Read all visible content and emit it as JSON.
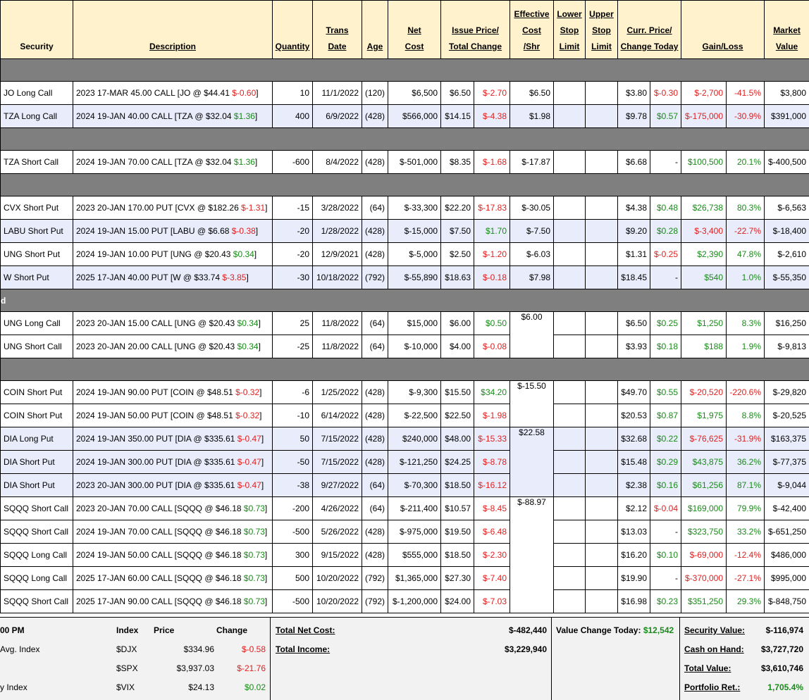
{
  "headers": {
    "security": "Security",
    "description": "Description",
    "quantity": "Quantity",
    "trans_date_1": "Trans",
    "trans_date_2": "Date",
    "age": "Age",
    "net_cost_1": "Net",
    "net_cost_2": "Cost",
    "issue_price_1": "Issue Price/",
    "issue_price_2": "Total Change",
    "eff_cost_1": "Effective",
    "eff_cost_2": "Cost",
    "eff_cost_3": "/Shr",
    "lower_1": "Lower",
    "lower_2": "Stop",
    "lower_3": "Limit",
    "upper_1": "Upper",
    "upper_2": "Stop",
    "upper_3": "Limit",
    "curr_price_1": "Curr. Price/",
    "curr_price_2": "Change Today",
    "gain_loss": "Gain/Loss",
    "market_1": "Market",
    "market_2": "Value"
  },
  "section_labels": [
    "",
    "",
    "",
    "d",
    ""
  ],
  "rows": [
    {
      "section": 0,
      "alt": false,
      "security": "JO Long Call",
      "desc": "2023 17-MAR 45.00 CALL [JO @ $44.41",
      "desc_chg": "$-0.60",
      "desc_chg_color": "red",
      "qty": "10",
      "date": "11/1/2022",
      "age": "(120)",
      "net_cost": "$6,500",
      "issue": "$6.50",
      "total_chg": "$-2.70",
      "total_chg_color": "red",
      "eff": "$6.50",
      "curr": "$3.80",
      "chg_today": "$-0.30",
      "chg_today_color": "red",
      "gain": "$-2,700",
      "gain_color": "red",
      "pct": "-41.5%",
      "pct_color": "red",
      "market": "$3,800"
    },
    {
      "section": 0,
      "alt": true,
      "security": "TZA Long Call",
      "desc": "2024 19-JAN 40.00 CALL [TZA @ $32.04",
      "desc_chg": "$1.36",
      "desc_chg_color": "grn",
      "qty": "400",
      "date": "6/9/2022",
      "age": "(428)",
      "net_cost": "$566,000",
      "issue": "$14.15",
      "total_chg": "$-4.38",
      "total_chg_color": "red",
      "eff": "$1.98",
      "curr": "$9.78",
      "chg_today": "$0.57",
      "chg_today_color": "grn",
      "gain": "$-175,000",
      "gain_color": "red",
      "pct": "-30.9%",
      "pct_color": "red",
      "market": "$391,000"
    },
    {
      "section": 1,
      "alt": false,
      "security": "TZA Short Call",
      "desc": "2024 19-JAN 70.00 CALL [TZA @ $32.04",
      "desc_chg": "$1.36",
      "desc_chg_color": "grn",
      "qty": "-600",
      "date": "8/4/2022",
      "age": "(428)",
      "net_cost": "$-501,000",
      "issue": "$8.35",
      "total_chg": "$-1.68",
      "total_chg_color": "red",
      "eff": "$-17.87",
      "curr": "$6.68",
      "chg_today": "-",
      "chg_today_color": "blk",
      "gain": "$100,500",
      "gain_color": "grn",
      "pct": "20.1%",
      "pct_color": "grn",
      "market": "$-400,500"
    },
    {
      "section": 2,
      "alt": false,
      "security": "CVX Short Put",
      "desc": "2023 20-JAN 170.00 PUT [CVX @ $182.26",
      "desc_chg": "$-1.31",
      "desc_chg_color": "red",
      "qty": "-15",
      "date": "3/28/2022",
      "age": "(64)",
      "net_cost": "$-33,300",
      "issue": "$22.20",
      "total_chg": "$-17.83",
      "total_chg_color": "red",
      "eff": "$-30.05",
      "curr": "$4.38",
      "chg_today": "$0.48",
      "chg_today_color": "grn",
      "gain": "$26,738",
      "gain_color": "grn",
      "pct": "80.3%",
      "pct_color": "grn",
      "market": "$-6,563"
    },
    {
      "section": 2,
      "alt": true,
      "security": "LABU Short Put",
      "desc": "2024 19-JAN 15.00 PUT [LABU @ $6.68",
      "desc_chg": "$-0.38",
      "desc_chg_color": "red",
      "qty": "-20",
      "date": "1/28/2022",
      "age": "(428)",
      "net_cost": "$-15,000",
      "issue": "$7.50",
      "total_chg": "$1.70",
      "total_chg_color": "grn",
      "eff": "$-7.50",
      "curr": "$9.20",
      "chg_today": "$0.28",
      "chg_today_color": "grn",
      "gain": "$-3,400",
      "gain_color": "red",
      "pct": "-22.7%",
      "pct_color": "red",
      "market": "$-18,400"
    },
    {
      "section": 2,
      "alt": false,
      "security": "UNG Short Put",
      "desc": "2024 19-JAN 10.00 PUT [UNG @ $20.43",
      "desc_chg": "$0.34",
      "desc_chg_color": "grn",
      "qty": "-20",
      "date": "12/9/2021",
      "age": "(428)",
      "net_cost": "$-5,000",
      "issue": "$2.50",
      "total_chg": "$-1.20",
      "total_chg_color": "red",
      "eff": "$-6.03",
      "curr": "$1.31",
      "chg_today": "$-0.25",
      "chg_today_color": "red",
      "gain": "$2,390",
      "gain_color": "grn",
      "pct": "47.8%",
      "pct_color": "grn",
      "market": "$-2,610"
    },
    {
      "section": 2,
      "alt": true,
      "security": "W Short Put",
      "desc": "2025 17-JAN 40.00 PUT [W @ $33.74",
      "desc_chg": "$-3.85",
      "desc_chg_color": "red",
      "qty": "-30",
      "date": "10/18/2022",
      "age": "(792)",
      "net_cost": "$-55,890",
      "issue": "$18.63",
      "total_chg": "$-0.18",
      "total_chg_color": "red",
      "eff": "$7.98",
      "curr": "$18.45",
      "chg_today": "-",
      "chg_today_color": "blk",
      "gain": "$540",
      "gain_color": "grn",
      "pct": "1.0%",
      "pct_color": "grn",
      "market": "$-55,350"
    },
    {
      "section": 3,
      "alt": false,
      "security": "UNG Long Call",
      "desc": "2023 20-JAN 15.00 CALL [UNG @ $20.43",
      "desc_chg": "$0.34",
      "desc_chg_color": "grn",
      "qty": "25",
      "date": "11/8/2022",
      "age": "(64)",
      "net_cost": "$15,000",
      "issue": "$6.00",
      "total_chg": "$0.50",
      "total_chg_color": "grn",
      "eff": "$6.00",
      "curr": "$6.50",
      "chg_today": "$0.25",
      "chg_today_color": "grn",
      "gain": "$1,250",
      "gain_color": "grn",
      "pct": "8.3%",
      "pct_color": "grn",
      "market": "$16,250"
    },
    {
      "section": 3,
      "alt": false,
      "security": "UNG Short Call",
      "desc": "2023 20-JAN 20.00 CALL [UNG @ $20.43",
      "desc_chg": "$0.34",
      "desc_chg_color": "grn",
      "qty": "-25",
      "date": "11/8/2022",
      "age": "(64)",
      "net_cost": "$-10,000",
      "issue": "$4.00",
      "total_chg": "$-0.08",
      "total_chg_color": "red",
      "eff": "",
      "curr": "$3.93",
      "chg_today": "$0.18",
      "chg_today_color": "grn",
      "gain": "$188",
      "gain_color": "grn",
      "pct": "1.9%",
      "pct_color": "grn",
      "market": "$-9,813"
    },
    {
      "section": 4,
      "alt": false,
      "security": "COIN Short Put",
      "desc": "2024 19-JAN 90.00 PUT [COIN @ $48.51",
      "desc_chg": "$-0.32",
      "desc_chg_color": "red",
      "qty": "-6",
      "date": "1/25/2022",
      "age": "(428)",
      "net_cost": "$-9,300",
      "issue": "$15.50",
      "total_chg": "$34.20",
      "total_chg_color": "grn",
      "eff": "$-15.50",
      "curr": "$49.70",
      "chg_today": "$0.55",
      "chg_today_color": "grn",
      "gain": "$-20,520",
      "gain_color": "red",
      "pct": "-220.6%",
      "pct_color": "red",
      "market": "$-29,820"
    },
    {
      "section": 4,
      "alt": false,
      "security": "COIN Short Put",
      "desc": "2024 19-JAN 50.00 PUT [COIN @ $48.51",
      "desc_chg": "$-0.32",
      "desc_chg_color": "red",
      "qty": "-10",
      "date": "6/14/2022",
      "age": "(428)",
      "net_cost": "$-22,500",
      "issue": "$22.50",
      "total_chg": "$-1.98",
      "total_chg_color": "red",
      "eff": "",
      "curr": "$20.53",
      "chg_today": "$0.87",
      "chg_today_color": "grn",
      "gain": "$1,975",
      "gain_color": "grn",
      "pct": "8.8%",
      "pct_color": "grn",
      "market": "$-20,525"
    },
    {
      "section": 4,
      "alt": true,
      "security": "DIA Long Put",
      "desc": "2024 19-JAN 350.00 PUT [DIA @ $335.61",
      "desc_chg": "$-0.47",
      "desc_chg_color": "red",
      "qty": "50",
      "date": "7/15/2022",
      "age": "(428)",
      "net_cost": "$240,000",
      "issue": "$48.00",
      "total_chg": "$-15.33",
      "total_chg_color": "red",
      "eff": "$22.58",
      "curr": "$32.68",
      "chg_today": "$0.22",
      "chg_today_color": "grn",
      "gain": "$-76,625",
      "gain_color": "red",
      "pct": "-31.9%",
      "pct_color": "red",
      "market": "$163,375"
    },
    {
      "section": 4,
      "alt": true,
      "security": "DIA Short Put",
      "desc": "2024 19-JAN 300.00 PUT [DIA @ $335.61",
      "desc_chg": "$-0.47",
      "desc_chg_color": "red",
      "qty": "-50",
      "date": "7/15/2022",
      "age": "(428)",
      "net_cost": "$-121,250",
      "issue": "$24.25",
      "total_chg": "$-8.78",
      "total_chg_color": "red",
      "eff": "",
      "curr": "$15.48",
      "chg_today": "$0.29",
      "chg_today_color": "grn",
      "gain": "$43,875",
      "gain_color": "grn",
      "pct": "36.2%",
      "pct_color": "grn",
      "market": "$-77,375"
    },
    {
      "section": 4,
      "alt": true,
      "security": "DIA Short Put",
      "desc": "2023 20-JAN 300.00 PUT [DIA @ $335.61",
      "desc_chg": "$-0.47",
      "desc_chg_color": "red",
      "qty": "-38",
      "date": "9/27/2022",
      "age": "(64)",
      "net_cost": "$-70,300",
      "issue": "$18.50",
      "total_chg": "$-16.12",
      "total_chg_color": "red",
      "eff": "",
      "curr": "$2.38",
      "chg_today": "$0.16",
      "chg_today_color": "grn",
      "gain": "$61,256",
      "gain_color": "grn",
      "pct": "87.1%",
      "pct_color": "grn",
      "market": "$-9,044"
    },
    {
      "section": 4,
      "alt": false,
      "security": "SQQQ Short Call",
      "desc": "2023 20-JAN 70.00 CALL [SQQQ @ $46.18",
      "desc_chg": "$0.73",
      "desc_chg_color": "grn",
      "qty": "-200",
      "date": "4/26/2022",
      "age": "(64)",
      "net_cost": "$-211,400",
      "issue": "$10.57",
      "total_chg": "$-8.45",
      "total_chg_color": "red",
      "eff": "$-88.97",
      "curr": "$2.12",
      "chg_today": "$-0.04",
      "chg_today_color": "red",
      "gain": "$169,000",
      "gain_color": "grn",
      "pct": "79.9%",
      "pct_color": "grn",
      "market": "$-42,400"
    },
    {
      "section": 4,
      "alt": false,
      "security": "SQQQ Short Call",
      "desc": "2024 19-JAN 70.00 CALL [SQQQ @ $46.18",
      "desc_chg": "$0.73",
      "desc_chg_color": "grn",
      "qty": "-500",
      "date": "5/26/2022",
      "age": "(428)",
      "net_cost": "$-975,000",
      "issue": "$19.50",
      "total_chg": "$-6.48",
      "total_chg_color": "red",
      "eff": "",
      "curr": "$13.03",
      "chg_today": "-",
      "chg_today_color": "blk",
      "gain": "$323,750",
      "gain_color": "grn",
      "pct": "33.2%",
      "pct_color": "grn",
      "market": "$-651,250"
    },
    {
      "section": 4,
      "alt": false,
      "security": "SQQQ Long Call",
      "desc": "2024 19-JAN 50.00 CALL [SQQQ @ $46.18",
      "desc_chg": "$0.73",
      "desc_chg_color": "grn",
      "qty": "300",
      "date": "9/15/2022",
      "age": "(428)",
      "net_cost": "$555,000",
      "issue": "$18.50",
      "total_chg": "$-2.30",
      "total_chg_color": "red",
      "eff": "",
      "curr": "$16.20",
      "chg_today": "$0.10",
      "chg_today_color": "grn",
      "gain": "$-69,000",
      "gain_color": "red",
      "pct": "-12.4%",
      "pct_color": "red",
      "market": "$486,000"
    },
    {
      "section": 4,
      "alt": false,
      "security": "SQQQ Long Call",
      "desc": "2025 17-JAN 60.00 CALL [SQQQ @ $46.18",
      "desc_chg": "$0.73",
      "desc_chg_color": "grn",
      "qty": "500",
      "date": "10/20/2022",
      "age": "(792)",
      "net_cost": "$1,365,000",
      "issue": "$27.30",
      "total_chg": "$-7.40",
      "total_chg_color": "red",
      "eff": "",
      "curr": "$19.90",
      "chg_today": "-",
      "chg_today_color": "blk",
      "gain": "$-370,000",
      "gain_color": "red",
      "pct": "-27.1%",
      "pct_color": "red",
      "market": "$995,000"
    },
    {
      "section": 4,
      "alt": false,
      "security": "SQQQ Short Call",
      "desc": "2025 17-JAN 90.00 CALL [SQQQ @ $46.18",
      "desc_chg": "$0.73",
      "desc_chg_color": "grn",
      "qty": "-500",
      "date": "10/20/2022",
      "age": "(792)",
      "net_cost": "$-1,200,000",
      "issue": "$24.00",
      "total_chg": "$-7.03",
      "total_chg_color": "red",
      "eff": "",
      "curr": "$16.98",
      "chg_today": "$0.23",
      "chg_today_color": "grn",
      "gain": "$351,250",
      "gain_color": "grn",
      "pct": "29.3%",
      "pct_color": "grn",
      "market": "$-848,750"
    }
  ],
  "eff_merge": [
    {
      "start": 7,
      "span": 2,
      "alt": false
    },
    {
      "start": 9,
      "span": 2,
      "alt": false
    },
    {
      "start": 11,
      "span": 3,
      "alt": true
    },
    {
      "start": 14,
      "span": 5,
      "alt": false
    }
  ],
  "summary": {
    "time": "00 PM",
    "index_header": "Index",
    "price_header": "Price",
    "change_header": "Change",
    "indices": [
      {
        "label": "Avg. Index",
        "symbol": "$DJX",
        "price": "$334.96",
        "change": "$-0.58",
        "change_color": "red"
      },
      {
        "label": "",
        "symbol": "$SPX",
        "price": "$3,937.03",
        "change": "$-21.76",
        "change_color": "red"
      },
      {
        "label": "y Index",
        "symbol": "$VIX",
        "price": "$24.13",
        "change": "$0.02",
        "change_color": "grn"
      }
    ],
    "total_net_cost_label": "Total Net Cost:",
    "total_net_cost": "$-482,440",
    "total_income_label": "Total Income:",
    "total_income": "$3,229,940",
    "value_change_label": "Value Change Today:",
    "value_change": "$12,542",
    "security_value_label": "Security Value:",
    "security_value": "$-116,974",
    "cash_label": "Cash on Hand:",
    "cash": "$3,727,720",
    "total_value_label": "Total Value:",
    "total_value": "$3,610,746",
    "portfolio_ret_label": "Portfolio Ret.:",
    "portfolio_ret": "1,705.4%"
  },
  "colors": {
    "header_bg": "#fff2cc",
    "section_bg": "#7f7f7f",
    "alt_row_bg": "#e8ecfb",
    "negative": "#e02020",
    "positive": "#1a8a1a",
    "summary_bg": "#f2f2f2"
  }
}
